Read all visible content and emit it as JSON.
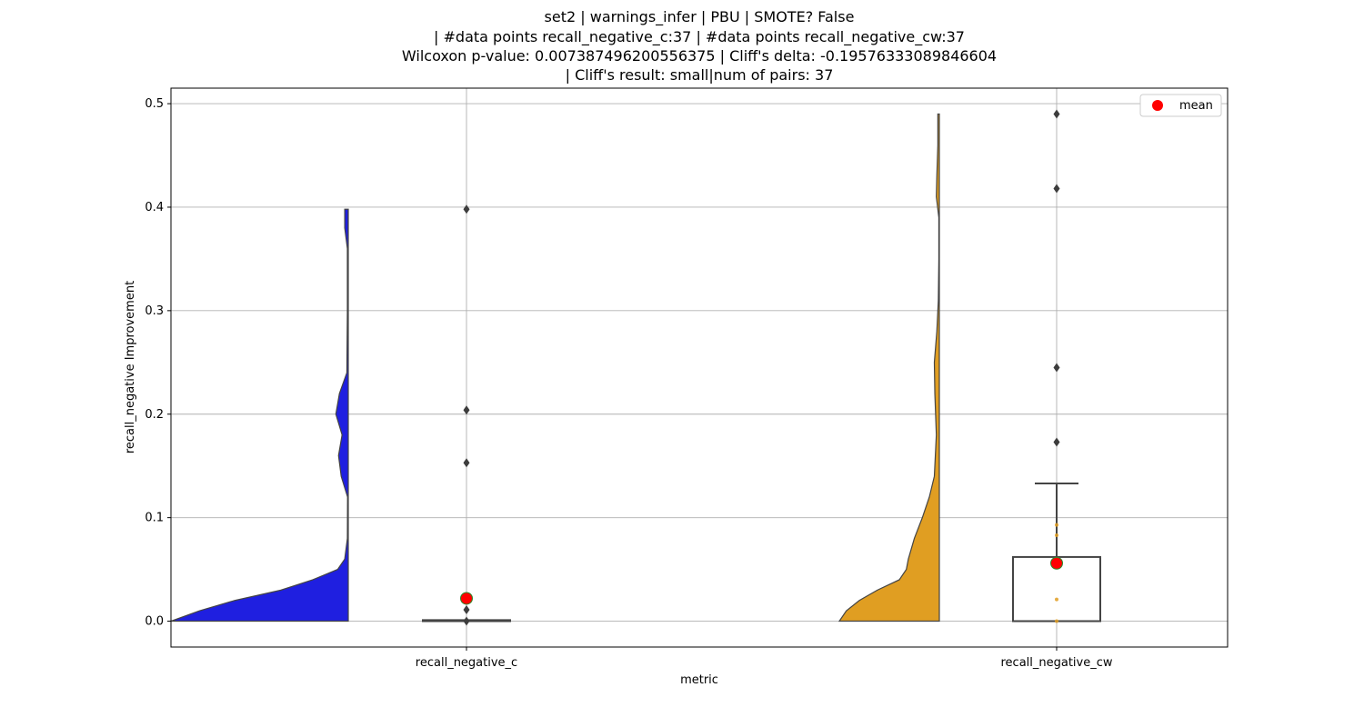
{
  "chart_data": {
    "type": "violin",
    "title_lines": [
      "set2 | warnings_infer | PBU | SMOTE? False",
      "| #data points recall_negative_c:37 | #data points recall_negative_cw:37",
      "Wilcoxon p-value: 0.007387496200556375 | Cliff's delta: -0.19576333089846604",
      "| Cliff's result: small|num of pairs: 37"
    ],
    "xlabel": "metric",
    "ylabel": "recall_negative Improvement",
    "categories": [
      "recall_negative_c",
      "recall_negative_cw"
    ],
    "ylim": [
      -0.025,
      0.515
    ],
    "yticks": [
      0.0,
      0.1,
      0.2,
      0.3,
      0.4,
      0.5
    ],
    "ytick_labels": [
      "0.0",
      "0.1",
      "0.2",
      "0.3",
      "0.4",
      "0.5"
    ],
    "grid": true,
    "legend": {
      "position": "top-right",
      "entries": [
        {
          "label": "mean",
          "color": "#ff0000"
        }
      ]
    },
    "series": [
      {
        "category": "recall_negative_c",
        "violin_color": "#1f1fe0",
        "violin_range": [
          0.0,
          0.398
        ],
        "violin_density": [
          [
            0.0,
            1.0
          ],
          [
            0.01,
            0.84
          ],
          [
            0.02,
            0.64
          ],
          [
            0.03,
            0.38
          ],
          [
            0.04,
            0.2
          ],
          [
            0.05,
            0.06
          ],
          [
            0.06,
            0.02
          ],
          [
            0.08,
            0.005
          ],
          [
            0.12,
            0.004
          ],
          [
            0.14,
            0.04
          ],
          [
            0.16,
            0.055
          ],
          [
            0.18,
            0.035
          ],
          [
            0.2,
            0.07
          ],
          [
            0.22,
            0.05
          ],
          [
            0.24,
            0.008
          ],
          [
            0.3,
            0.005
          ],
          [
            0.36,
            0.005
          ],
          [
            0.38,
            0.02
          ],
          [
            0.398,
            0.02
          ]
        ],
        "box": {
          "q1": 0.0,
          "median": 0.0,
          "q3": 0.001,
          "whisker_low": 0.0,
          "whisker_high": 0.001
        },
        "outliers": [
          0.398,
          0.204,
          0.153,
          0.011,
          0.0
        ],
        "mean": 0.022,
        "strip_points": [
          0.0,
          0.0,
          0.0,
          0.0
        ]
      },
      {
        "category": "recall_negative_cw",
        "violin_color": "#e09e22",
        "violin_range": [
          0.0,
          0.49
        ],
        "violin_density": [
          [
            0.0,
            1.0
          ],
          [
            0.01,
            0.93
          ],
          [
            0.02,
            0.8
          ],
          [
            0.03,
            0.62
          ],
          [
            0.04,
            0.4
          ],
          [
            0.05,
            0.33
          ],
          [
            0.06,
            0.31
          ],
          [
            0.08,
            0.25
          ],
          [
            0.1,
            0.17
          ],
          [
            0.12,
            0.1
          ],
          [
            0.14,
            0.05
          ],
          [
            0.18,
            0.03
          ],
          [
            0.22,
            0.045
          ],
          [
            0.25,
            0.05
          ],
          [
            0.28,
            0.025
          ],
          [
            0.31,
            0.01
          ],
          [
            0.35,
            0.005
          ],
          [
            0.39,
            0.005
          ],
          [
            0.41,
            0.03
          ],
          [
            0.43,
            0.025
          ],
          [
            0.46,
            0.015
          ],
          [
            0.49,
            0.015
          ]
        ],
        "box": {
          "q1": 0.0,
          "median": 0.0,
          "q3": 0.062,
          "whisker_low": 0.0,
          "whisker_high": 0.133
        },
        "outliers": [
          0.49,
          0.418,
          0.245,
          0.173
        ],
        "mean": 0.056,
        "strip_points": [
          0.0,
          0.021,
          0.083,
          0.093
        ]
      }
    ]
  }
}
